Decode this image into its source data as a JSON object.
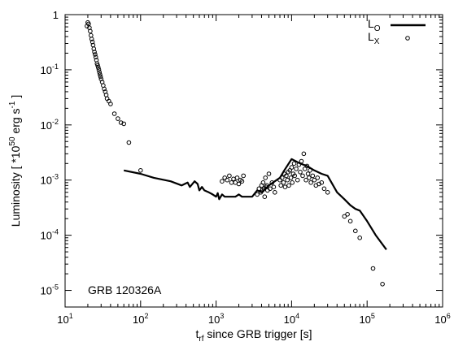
{
  "chart_data": {
    "type": "scatter",
    "xscale": "log",
    "yscale": "log",
    "xlim": [
      10,
      1000000
    ],
    "ylim": [
      5e-06,
      1
    ],
    "grid": false,
    "legend_position": "top-right",
    "xlabel": {
      "main": "t",
      "sub": "rf",
      "rest": " since GRB trigger [s]"
    },
    "ylabel": {
      "pre": "Luminosity  [ *10",
      "exp1": "50",
      "mid": " erg s",
      "exp2": "-1",
      "post": " ]"
    },
    "annotation": "GRB 120326A",
    "x_ticks": [
      {
        "value": 10,
        "base": "10",
        "exp": "1"
      },
      {
        "value": 100,
        "base": "10",
        "exp": "2"
      },
      {
        "value": 1000,
        "base": "10",
        "exp": "3"
      },
      {
        "value": 10000,
        "base": "10",
        "exp": "4"
      },
      {
        "value": 100000,
        "base": "10",
        "exp": "5"
      },
      {
        "value": 1000000,
        "base": "10",
        "exp": "6"
      }
    ],
    "y_ticks": [
      {
        "value": 1e-05,
        "base": "10",
        "exp": "-5"
      },
      {
        "value": 0.0001,
        "base": "10",
        "exp": "-4"
      },
      {
        "value": 0.001,
        "base": "10",
        "exp": "-3"
      },
      {
        "value": 0.01,
        "base": "10",
        "exp": "-2"
      },
      {
        "value": 0.1,
        "base": "10",
        "exp": "-1"
      },
      {
        "value": 1,
        "base": "1",
        "exp": ""
      }
    ],
    "series": [
      {
        "name": "L",
        "name_sub": "O",
        "style": "line",
        "color": "#000000",
        "points": [
          [
            60,
            0.0015
          ],
          [
            100,
            0.0013
          ],
          [
            150,
            0.0011
          ],
          [
            250,
            0.00095
          ],
          [
            350,
            0.0008
          ],
          [
            420,
            0.0009
          ],
          [
            450,
            0.00075
          ],
          [
            520,
            0.00095
          ],
          [
            570,
            0.00085
          ],
          [
            600,
            0.00065
          ],
          [
            650,
            0.00075
          ],
          [
            700,
            0.00065
          ],
          [
            800,
            0.0006
          ],
          [
            900,
            0.00055
          ],
          [
            1000,
            0.0005
          ],
          [
            1050,
            0.00058
          ],
          [
            1100,
            0.00045
          ],
          [
            1200,
            0.00055
          ],
          [
            1300,
            0.0005
          ],
          [
            1800,
            0.0005
          ],
          [
            2000,
            0.00055
          ],
          [
            2200,
            0.0005
          ],
          [
            3000,
            0.0005
          ],
          [
            3500,
            0.00065
          ],
          [
            4000,
            0.0006
          ],
          [
            5000,
            0.0008
          ],
          [
            6000,
            0.00095
          ],
          [
            7000,
            0.0011
          ],
          [
            8000,
            0.0015
          ],
          [
            10000,
            0.0024
          ],
          [
            13000,
            0.002
          ],
          [
            16000,
            0.0018
          ],
          [
            20000,
            0.0015
          ],
          [
            25000,
            0.0013
          ],
          [
            30000,
            0.0012
          ],
          [
            40000,
            0.0006
          ],
          [
            50000,
            0.00045
          ],
          [
            60000,
            0.00035
          ],
          [
            70000,
            0.0003
          ],
          [
            80000,
            0.00028
          ],
          [
            100000,
            0.00018
          ],
          [
            130000,
            0.0001
          ],
          [
            180000,
            5.5e-05
          ]
        ]
      },
      {
        "name": "L",
        "name_sub": "X",
        "style": "markers",
        "color": "#000000",
        "points": [
          [
            19.5,
            0.62
          ],
          [
            20,
            0.72
          ],
          [
            20.5,
            0.68
          ],
          [
            21,
            0.58
          ],
          [
            21.5,
            0.5
          ],
          [
            22,
            0.42
          ],
          [
            22.5,
            0.36
          ],
          [
            23,
            0.32
          ],
          [
            23.5,
            0.28
          ],
          [
            24,
            0.24
          ],
          [
            24.5,
            0.21
          ],
          [
            25,
            0.19
          ],
          [
            25.5,
            0.17
          ],
          [
            26,
            0.15
          ],
          [
            26.5,
            0.13
          ],
          [
            27,
            0.12
          ],
          [
            27.5,
            0.11
          ],
          [
            28,
            0.1
          ],
          [
            28.5,
            0.09
          ],
          [
            29,
            0.082
          ],
          [
            29.5,
            0.075
          ],
          [
            30,
            0.068
          ],
          [
            31,
            0.06
          ],
          [
            32,
            0.052
          ],
          [
            33,
            0.045
          ],
          [
            34,
            0.04
          ],
          [
            35,
            0.035
          ],
          [
            36,
            0.03
          ],
          [
            38,
            0.027
          ],
          [
            40,
            0.024
          ],
          [
            45,
            0.016
          ],
          [
            50,
            0.013
          ],
          [
            55,
            0.011
          ],
          [
            60,
            0.0105
          ],
          [
            70,
            0.0048
          ],
          [
            100,
            0.0015
          ],
          [
            1200,
            0.00095
          ],
          [
            1300,
            0.0011
          ],
          [
            1400,
            0.001
          ],
          [
            1500,
            0.0012
          ],
          [
            1600,
            0.0009
          ],
          [
            1700,
            0.00105
          ],
          [
            1800,
            0.0009
          ],
          [
            1900,
            0.0011
          ],
          [
            2000,
            0.00085
          ],
          [
            2100,
            0.001
          ],
          [
            2200,
            0.00095
          ],
          [
            2300,
            0.0012
          ],
          [
            3500,
            0.00055
          ],
          [
            3700,
            0.0007
          ],
          [
            3900,
            0.0006
          ],
          [
            4000,
            0.0008
          ],
          [
            4100,
            0.00065
          ],
          [
            4200,
            0.0009
          ],
          [
            4300,
            0.0007
          ],
          [
            4400,
            0.0005
          ],
          [
            4500,
            0.0011
          ],
          [
            4600,
            0.00075
          ],
          [
            4700,
            0.0008
          ],
          [
            4800,
            0.00065
          ],
          [
            5000,
            0.0013
          ],
          [
            5200,
            0.0007
          ],
          [
            5500,
            0.0009
          ],
          [
            5800,
            0.00075
          ],
          [
            6000,
            0.0006
          ],
          [
            7000,
            0.001
          ],
          [
            7200,
            0.0008
          ],
          [
            7500,
            0.0011
          ],
          [
            7800,
            0.0009
          ],
          [
            8000,
            0.0013
          ],
          [
            8200,
            0.00075
          ],
          [
            8500,
            0.0012
          ],
          [
            8800,
            0.001
          ],
          [
            9000,
            0.0014
          ],
          [
            9200,
            0.0008
          ],
          [
            9500,
            0.0015
          ],
          [
            9800,
            0.0011
          ],
          [
            10000,
            0.0017
          ],
          [
            10200,
            0.0009
          ],
          [
            10500,
            0.0013
          ],
          [
            10800,
            0.002
          ],
          [
            11000,
            0.0012
          ],
          [
            11500,
            0.0016
          ],
          [
            12000,
            0.001
          ],
          [
            12500,
            0.0019
          ],
          [
            13000,
            0.0014
          ],
          [
            13500,
            0.0022
          ],
          [
            14000,
            0.0012
          ],
          [
            14500,
            0.003
          ],
          [
            15000,
            0.0016
          ],
          [
            15500,
            0.001
          ],
          [
            16000,
            0.0018
          ],
          [
            16500,
            0.0013
          ],
          [
            17000,
            0.0011
          ],
          [
            17500,
            0.0015
          ],
          [
            18000,
            0.0009
          ],
          [
            19000,
            0.0012
          ],
          [
            20000,
            0.001
          ],
          [
            21000,
            0.0008
          ],
          [
            22000,
            0.0011
          ],
          [
            23000,
            0.00085
          ],
          [
            25000,
            0.0009
          ],
          [
            27000,
            0.0007
          ],
          [
            30000,
            0.0006
          ],
          [
            50000,
            0.00022
          ],
          [
            55000,
            0.00024
          ],
          [
            60000,
            0.00018
          ],
          [
            70000,
            0.00012
          ],
          [
            80000,
            9e-05
          ],
          [
            120000,
            2.5e-05
          ],
          [
            160000,
            1.3e-05
          ]
        ]
      }
    ]
  }
}
